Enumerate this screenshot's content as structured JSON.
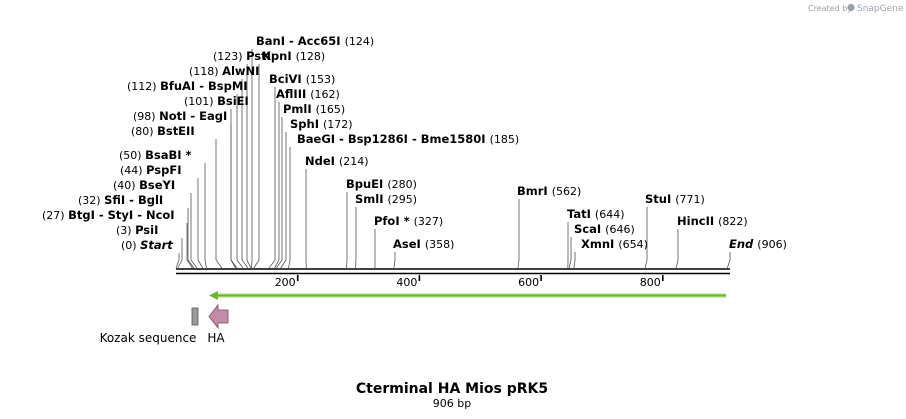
{
  "credit": {
    "prefix": "Created by",
    "brand": "SnapGene"
  },
  "map": {
    "title": "Cterminal HA Mios pRK5",
    "length_label": "906 bp",
    "length": 906,
    "ticks": [
      {
        "label": "200",
        "value": 200
      },
      {
        "label": "400",
        "value": 400
      },
      {
        "label": "600",
        "value": 600
      },
      {
        "label": "800",
        "value": 800
      }
    ],
    "sites": [
      {
        "pos": 0,
        "pos_label": "(0)",
        "names": [
          "Start"
        ],
        "italic": true
      },
      {
        "pos": 3,
        "pos_label": "(3)",
        "names": [
          "PsiI"
        ]
      },
      {
        "pos": 27,
        "pos_label": "(27)",
        "names": [
          "BtgI",
          "StyI",
          "NcoI"
        ]
      },
      {
        "pos": 32,
        "pos_label": "(32)",
        "names": [
          "SfiI",
          "BglI"
        ]
      },
      {
        "pos": 40,
        "pos_label": "(40)",
        "names": [
          "BseYI"
        ]
      },
      {
        "pos": 44,
        "pos_label": "(44)",
        "names": [
          "PspFI"
        ]
      },
      {
        "pos": 50,
        "pos_label": "(50)",
        "names": [
          "BsaBI *"
        ]
      },
      {
        "pos": 80,
        "pos_label": "(80)",
        "names": [
          "BstEII"
        ]
      },
      {
        "pos": 98,
        "pos_label": "(98)",
        "names": [
          "NotI",
          "EagI"
        ]
      },
      {
        "pos": 101,
        "pos_label": "(101)",
        "names": [
          "BsiEI"
        ]
      },
      {
        "pos": 112,
        "pos_label": "(112)",
        "names": [
          "BfuAI",
          "BspMI"
        ]
      },
      {
        "pos": 118,
        "pos_label": "(118)",
        "names": [
          "AlwNI"
        ]
      },
      {
        "pos": 123,
        "pos_label": "(123)",
        "names": [
          "PstI"
        ]
      },
      {
        "pos": 124,
        "pos_label": "(124)",
        "names": [
          "BanI",
          "Acc65I"
        ]
      },
      {
        "pos": 128,
        "pos_label": "(128)",
        "names": [
          "KpnI"
        ]
      },
      {
        "pos": 153,
        "pos_label": "(153)",
        "names": [
          "BciVI"
        ]
      },
      {
        "pos": 162,
        "pos_label": "(162)",
        "names": [
          "AflIII"
        ]
      },
      {
        "pos": 165,
        "pos_label": "(165)",
        "names": [
          "PmlI"
        ]
      },
      {
        "pos": 172,
        "pos_label": "(172)",
        "names": [
          "SphI"
        ]
      },
      {
        "pos": 185,
        "pos_label": "(185)",
        "names": [
          "BaeGI",
          "Bsp1286I",
          "Bme1580I"
        ]
      },
      {
        "pos": 214,
        "pos_label": "(214)",
        "names": [
          "NdeI"
        ]
      },
      {
        "pos": 280,
        "pos_label": "(280)",
        "names": [
          "BpuEI"
        ]
      },
      {
        "pos": 295,
        "pos_label": "(295)",
        "names": [
          "SmlI"
        ]
      },
      {
        "pos": 327,
        "pos_label": "(327)",
        "names": [
          "PfoI *"
        ]
      },
      {
        "pos": 358,
        "pos_label": "(358)",
        "names": [
          "AseI"
        ]
      },
      {
        "pos": 562,
        "pos_label": "(562)",
        "names": [
          "BmrI"
        ]
      },
      {
        "pos": 644,
        "pos_label": "(644)",
        "names": [
          "TatI"
        ]
      },
      {
        "pos": 646,
        "pos_label": "(646)",
        "names": [
          "ScaI"
        ]
      },
      {
        "pos": 654,
        "pos_label": "(654)",
        "names": [
          "XmnI"
        ]
      },
      {
        "pos": 771,
        "pos_label": "(771)",
        "names": [
          "StuI"
        ]
      },
      {
        "pos": 822,
        "pos_label": "(822)",
        "names": [
          "HincII"
        ]
      },
      {
        "pos": 906,
        "pos_label": "(906)",
        "names": [
          "End"
        ],
        "italic": true
      }
    ],
    "features": [
      {
        "name": "Kozak sequence",
        "kind": "box",
        "color": "#9a9a9a"
      },
      {
        "name": "HA",
        "kind": "arrow",
        "color": "#c48aa8"
      }
    ],
    "orf_color": "#66bb22"
  }
}
